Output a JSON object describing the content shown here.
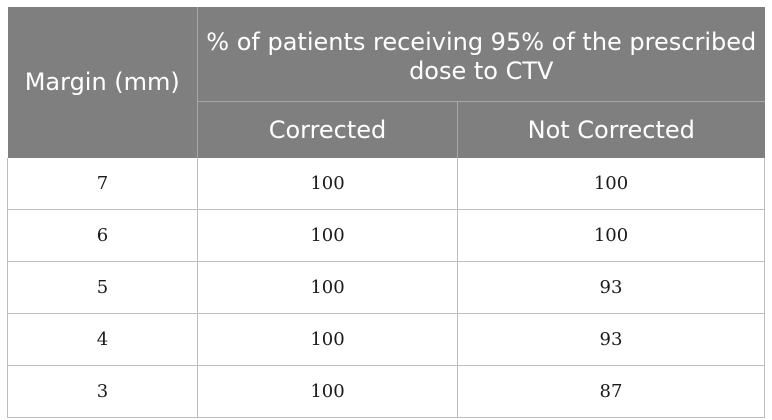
{
  "table": {
    "headers": {
      "margin": "Margin (mm)",
      "group": "% of patients receiving 95% of the prescribed dose to CTV",
      "corrected": "Corrected",
      "not_corrected": "Not Corrected"
    },
    "rows": [
      {
        "margin": "7",
        "corrected": "100",
        "not_corrected": "100"
      },
      {
        "margin": "6",
        "corrected": "100",
        "not_corrected": "100"
      },
      {
        "margin": "5",
        "corrected": "100",
        "not_corrected": "93"
      },
      {
        "margin": "4",
        "corrected": "100",
        "not_corrected": "93"
      },
      {
        "margin": "3",
        "corrected": "100",
        "not_corrected": "87"
      }
    ]
  },
  "colors": {
    "header_background": "#7f7f7f",
    "header_text": "#ffffff",
    "grid_line": "#bdbdbd"
  }
}
